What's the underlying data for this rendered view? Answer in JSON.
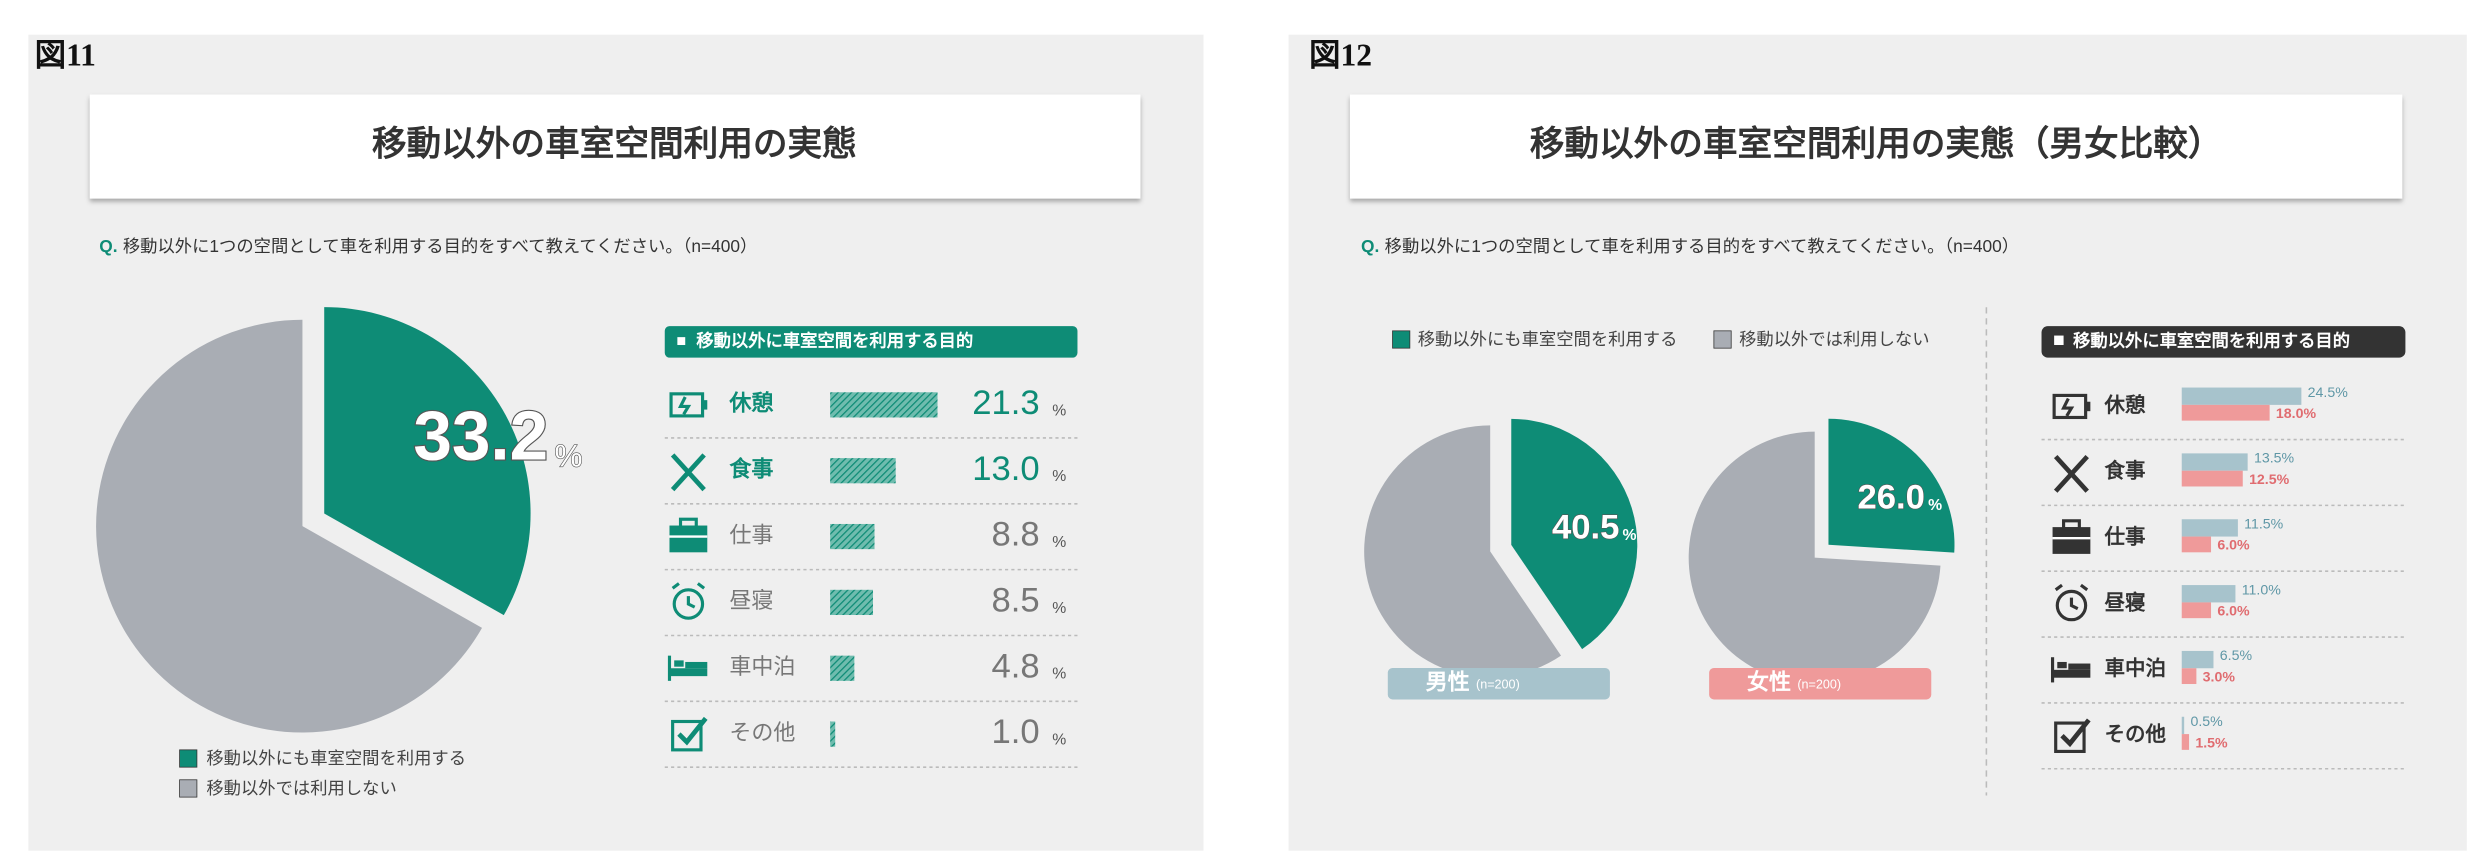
{
  "chart_data": [
    {
      "type": "pie",
      "figure": "図11",
      "title": "移動以外の車室空間利用の実態",
      "question_prefix": "Q.",
      "question": "移動以外に1つの空間として車を利用する目的をすべて教えてください。（n=400）",
      "categories": [
        "移動以外にも車室空間を利用する",
        "移動以外では利用しない"
      ],
      "colors": [
        "#0e8c76",
        "#a9adb4"
      ],
      "values": [
        33.2,
        66.8
      ],
      "unit": "%"
    },
    {
      "type": "bar",
      "header": "移動以外に車室空間を利用する目的",
      "categories": [
        "休憩",
        "食事",
        "仕事",
        "昼寝",
        "車中泊",
        "その他"
      ],
      "values": [
        21.3,
        13.0,
        8.8,
        8.5,
        4.8,
        1.0
      ],
      "value_labels": [
        "21.3",
        "13.0",
        "8.8",
        "8.5",
        "4.8",
        "1.0"
      ],
      "unit": "%",
      "color": "#0e8c76",
      "label_colors": [
        "#0e8c76",
        "#0e8c76",
        "#777777",
        "#777777",
        "#777777",
        "#777777"
      ]
    },
    {
      "type": "pie",
      "figure": "図12",
      "title": "移動以外の車室空間利用の実態（男女比較）",
      "question_prefix": "Q.",
      "question": "移動以外に1つの空間として車を利用する目的をすべて教えてください。（n=400）",
      "categories": [
        "移動以外にも車室空間を利用する",
        "移動以外では利用しない"
      ],
      "colors": [
        "#0e8c76",
        "#a9adb4"
      ],
      "unit": "%",
      "pies": [
        {
          "name": "男性",
          "note": "(n=200)",
          "color": "#a7c3cc",
          "values": [
            40.5,
            59.5
          ]
        },
        {
          "name": "女性",
          "note": "(n=200)",
          "color": "#ef9a9a",
          "values": [
            26.0,
            74.0
          ],
          "value_labels": [
            "26.0",
            null
          ]
        }
      ]
    },
    {
      "type": "groupbar",
      "header": "移動以外に車室空間を利用する目的",
      "categories": [
        "休憩",
        "食事",
        "仕事",
        "昼寝",
        "車中泊",
        "その他"
      ],
      "series": [
        {
          "color": "#a7c3cc",
          "label_color": "#5f97a6",
          "values": [
            24.5,
            13.5,
            11.5,
            11.0,
            6.5,
            0.5
          ],
          "value_labels": [
            "24.5%",
            "13.5%",
            "11.5%",
            "11.0%",
            "6.5%",
            "0.5%"
          ]
        },
        {
          "color": "#ef9a9a",
          "label_color": "#e06c70",
          "values": [
            18.0,
            12.5,
            6.0,
            6.0,
            3.0,
            1.5
          ],
          "value_labels": [
            "18.0%",
            "12.5%",
            "6.0%",
            "6.0%",
            "3.0%",
            "1.5%"
          ]
        }
      ]
    }
  ]
}
